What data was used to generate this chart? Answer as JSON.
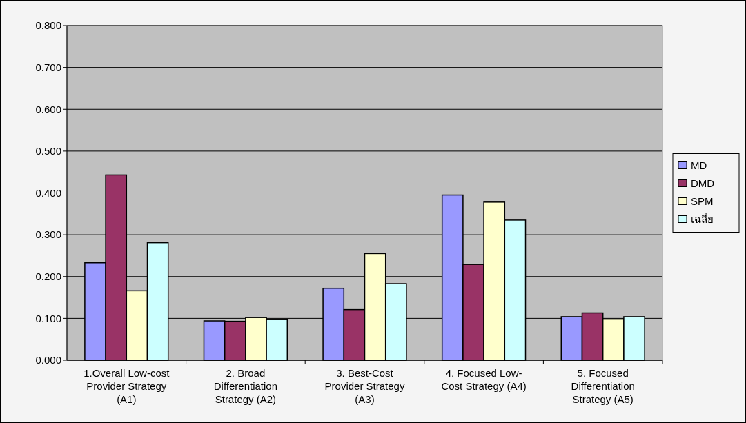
{
  "chart_data": {
    "type": "bar",
    "categories": [
      "1.Overall Low-cost Provider Strategy (A1)",
      "2. Broad Differentiation Strategy (A2)",
      "3. Best-Cost Provider Strategy (A3)",
      "4. Focused Low-Cost Strategy (A4)",
      "5. Focused Differentiation Strategy (A5)"
    ],
    "series": [
      {
        "name": "MD",
        "color": "#9999ff",
        "values": [
          0.233,
          0.094,
          0.172,
          0.395,
          0.104
        ]
      },
      {
        "name": "DMD",
        "color": "#993366",
        "values": [
          0.443,
          0.093,
          0.121,
          0.229,
          0.113
        ]
      },
      {
        "name": "SPM",
        "color": "#ffffcc",
        "values": [
          0.166,
          0.102,
          0.255,
          0.378,
          0.098
        ]
      },
      {
        "name": "เฉลี่ย",
        "color": "#ccffff",
        "values": [
          0.281,
          0.097,
          0.183,
          0.335,
          0.104
        ]
      }
    ],
    "ylim": [
      0,
      0.8
    ],
    "yticks": [
      {
        "value": 0,
        "label": "0.000"
      },
      {
        "value": 0.1,
        "label": "0.100"
      },
      {
        "value": 0.2,
        "label": "0.200"
      },
      {
        "value": 0.3,
        "label": "0.300"
      },
      {
        "value": 0.4,
        "label": "0.400"
      },
      {
        "value": 0.5,
        "label": "0.500"
      },
      {
        "value": 0.6,
        "label": "0.600"
      },
      {
        "value": 0.7,
        "label": "0.700"
      },
      {
        "value": 0.8,
        "label": "0.800"
      }
    ],
    "grid": "y",
    "legend": "right"
  }
}
